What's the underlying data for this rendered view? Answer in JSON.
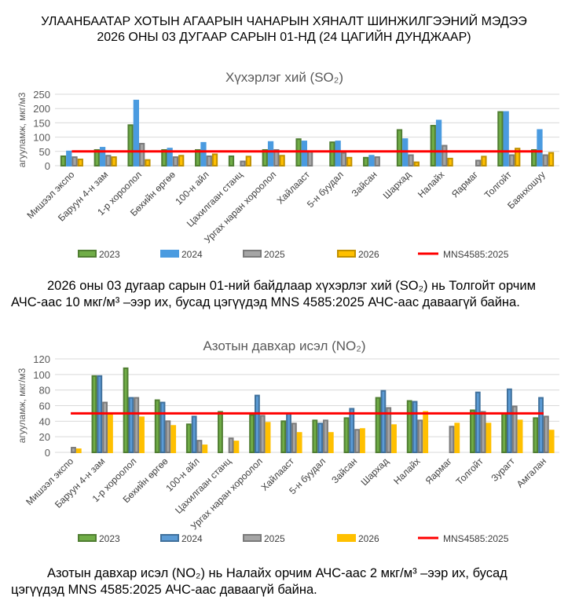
{
  "header": {
    "line1": "УЛААНБААТАР ХОТЫН АГААРЫН ЧАНАРЫН ХЯНАЛТ ШИНЖИЛГЭЭНИЙ МЭДЭЭ",
    "line2": "2026 ОНЫ 03 ДУГААР САРЫН 01-НД (24 ЦАГИЙН ДУНДЖААР)"
  },
  "chart_data": [
    {
      "type": "bar",
      "title": "Хүхэрлэг хий (SO₂)",
      "ylabel": "агууламж, мкг/м3",
      "ylim": [
        0,
        250
      ],
      "yticks": [
        0,
        50,
        100,
        150,
        200,
        250
      ],
      "grid": true,
      "legend": "bottom",
      "limit": {
        "name": "MNS4585:2025",
        "value": 50,
        "color": "#ff0000"
      },
      "categories": [
        "Мишээл экспо",
        "Баруун 4-н зам",
        "1-р хороолол",
        "Бөхийн өргөө",
        "100-н айл",
        "Цахилгаан станц",
        "Ургах наран хороолол",
        "Хайлааст",
        "5-н буудал",
        "Зайсан",
        "Шархад",
        "Налайх",
        "Яармаг",
        "Толгойт",
        "Баянхошуу"
      ],
      "series": [
        {
          "name": "2023",
          "color": "#70ad47",
          "values": [
            33,
            55,
            142,
            55,
            55,
            33,
            55,
            93,
            82,
            28,
            125,
            140,
            null,
            188,
            55
          ]
        },
        {
          "name": "2024",
          "color": "#4a9be0",
          "values": [
            50,
            63,
            228,
            60,
            80,
            null,
            83,
            85,
            85,
            35,
            93,
            158,
            null,
            188,
            125
          ]
        },
        {
          "name": "2025",
          "color": "#a5a5a5",
          "values": [
            30,
            35,
            77,
            30,
            33,
            15,
            55,
            50,
            45,
            30,
            37,
            70,
            18,
            37,
            37
          ]
        },
        {
          "name": "2026",
          "color": "#ffc000",
          "values": [
            22,
            30,
            20,
            35,
            40,
            32,
            35,
            null,
            28,
            null,
            12,
            25,
            32,
            60,
            45
          ]
        }
      ]
    },
    {
      "type": "bar",
      "title": "Азотын давхар исэл (NO₂)",
      "ylabel": "агууламж, мкг/м3",
      "ylim": [
        0,
        120
      ],
      "yticks": [
        0,
        20,
        40,
        60,
        80,
        100,
        120
      ],
      "grid": true,
      "legend": "bottom",
      "limit": {
        "name": "MNS4585:2025",
        "value": 50,
        "color": "#ff0000"
      },
      "categories": [
        "Мишээл экспо",
        "Баруун 4-н зам",
        "1-р хороолол",
        "Бөхийн өргөө",
        "100-н айл",
        "Цахилгаан станц",
        "Ургах наран хороолол",
        "Хайлааст",
        "5-н буудал",
        "Зайсан",
        "Шархад",
        "Налайх",
        "Яармаг",
        "Толгойт",
        "Зурагт",
        "Амгалан"
      ],
      "series": [
        {
          "name": "2023",
          "color": "#70ad47",
          "values": [
            null,
            98,
            108,
            67,
            36,
            52,
            48,
            40,
            41,
            44,
            70,
            66,
            null,
            54,
            50,
            44
          ]
        },
        {
          "name": "2024",
          "color": "#5b9bd5",
          "values": [
            null,
            98,
            70,
            64,
            46,
            null,
            73,
            50,
            37,
            56,
            79,
            65,
            null,
            77,
            81,
            70
          ]
        },
        {
          "name": "2025",
          "color": "#a5a5a5",
          "values": [
            6,
            64,
            70,
            40,
            15,
            18,
            47,
            37,
            41,
            29,
            57,
            41,
            33,
            52,
            59,
            46
          ]
        },
        {
          "name": "2026",
          "color": "#ffc000",
          "values": [
            4,
            50,
            45,
            34,
            9,
            14,
            38,
            25,
            25,
            30,
            35,
            52,
            37,
            37,
            41,
            28
          ]
        }
      ]
    }
  ],
  "text1": {
    "a": "2026 оны 03 дугаар сарын 01-ний байдлаар хүхэрлэг хий (SO₂) нь Толгойт орчим",
    "b": "АЧС-аас 10 мкг/м³ –ээр их, бусад цэгүүдэд MNS 4585:2025 АЧС-аас даваагүй байна."
  },
  "text2": {
    "a": "Азотын давхар исэл (NO₂) нь Налайх орчим АЧС-аас 2 мкг/м³ –ээр их, бусад",
    "b": "цэгүүдэд MNS 4585:2025 АЧС-аас даваагүй байна."
  }
}
